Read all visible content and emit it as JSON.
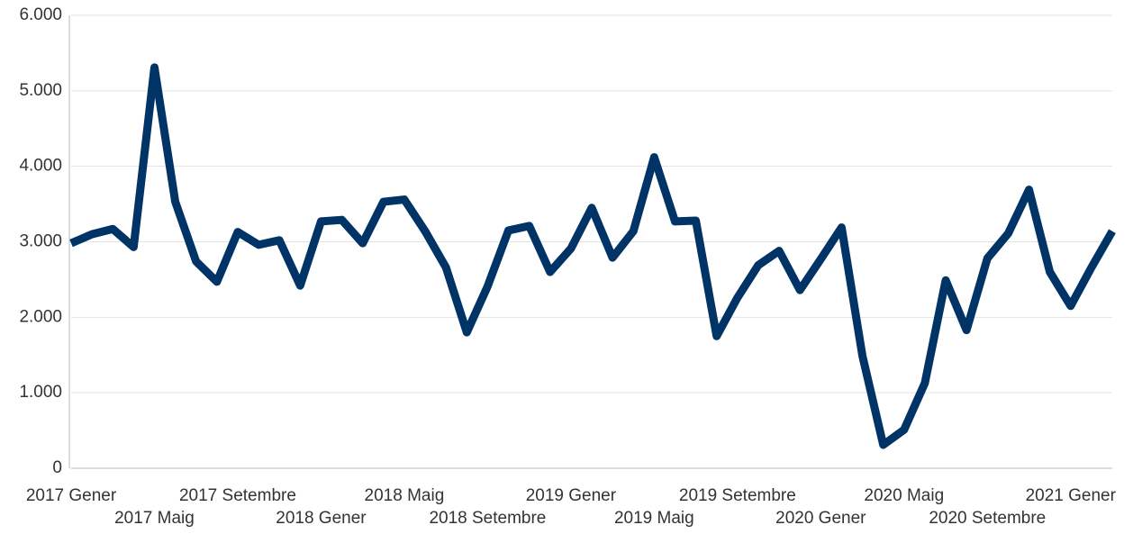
{
  "chart_data": {
    "type": "line",
    "categories": [
      "2017 Gener",
      null,
      null,
      null,
      "2017 Maig",
      null,
      null,
      null,
      "2017 Setembre",
      null,
      null,
      null,
      "2018 Gener",
      null,
      null,
      null,
      "2018 Maig",
      null,
      null,
      null,
      "2018 Setembre",
      null,
      null,
      null,
      "2019 Gener",
      null,
      null,
      null,
      "2019 Maig",
      null,
      null,
      null,
      "2019 Setembre",
      null,
      null,
      null,
      "2020 Gener",
      null,
      null,
      null,
      "2020 Maig",
      null,
      null,
      null,
      "2020 Setembre",
      null,
      null,
      null,
      "2021 Gener",
      null,
      null
    ],
    "series": [
      {
        "name": null,
        "color": "#003366",
        "values": [
          2980,
          3100,
          3170,
          2930,
          5310,
          3530,
          2740,
          2470,
          3130,
          2960,
          3020,
          2420,
          3270,
          3290,
          2980,
          3530,
          3560,
          3140,
          2660,
          1800,
          2410,
          3150,
          3210,
          2600,
          2910,
          3450,
          2790,
          3140,
          4120,
          3270,
          3280,
          1750,
          2260,
          2690,
          2880,
          2360,
          2770,
          3190,
          1490,
          310,
          510,
          1130,
          2490,
          1830,
          2780,
          3110,
          3690,
          2600,
          2150,
          2660,
          3140
        ]
      }
    ],
    "ylim": [
      0,
      6000
    ],
    "yticks": [
      0,
      {
        "value": 1000,
        "label": "1.000"
      },
      {
        "value": 2000,
        "label": "2.000"
      },
      {
        "value": 3000,
        "label": "3.000"
      },
      {
        "value": 4000,
        "label": "4.000"
      },
      {
        "value": 5000,
        "label": "5.000"
      },
      {
        "value": 6000,
        "label": "6.000"
      }
    ],
    "grid": true
  }
}
